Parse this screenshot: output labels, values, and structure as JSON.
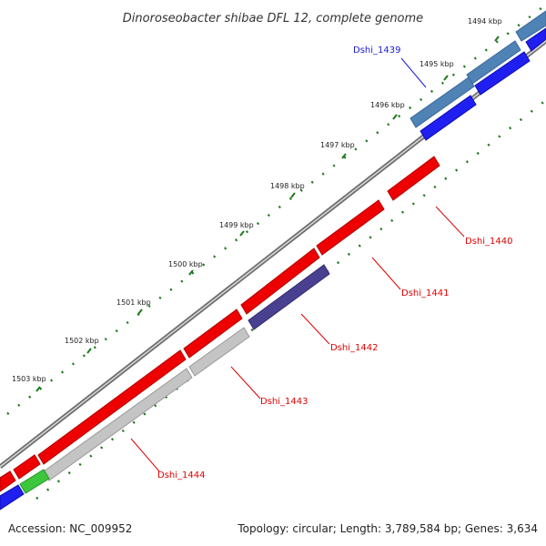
{
  "title": "Dinoroseobacter shibae DFL 12, complete genome",
  "footer": {
    "accession": "Accession: NC_009952",
    "topology": "Topology: circular; Length: 3,789,584 bp; Genes: 3,634"
  },
  "ticks": [
    "1494 kbp",
    "1495 kbp",
    "1496 kbp",
    "1497 kbp",
    "1498 kbp",
    "1499 kbp",
    "1500 kbp",
    "1501 kbp",
    "1502 kbp",
    "1503 kbp"
  ],
  "gene_labels": [
    {
      "text": "Dshi_1439",
      "color": "#1a1ad6"
    },
    {
      "text": "Dshi_1440",
      "color": "#e00000"
    },
    {
      "text": "Dshi_1441",
      "color": "#e00000"
    },
    {
      "text": "Dshi_1442",
      "color": "#e00000"
    },
    {
      "text": "Dshi_1443",
      "color": "#e00000"
    },
    {
      "text": "Dshi_1444",
      "color": "#e00000"
    }
  ],
  "colors": {
    "backbone": "#8c8c8c",
    "gene_red": "#ee0000",
    "gene_blue": "#1f1ff0",
    "gene_steelblue": "#4f82b5",
    "gene_purple": "#4a4090",
    "gene_gray": "#c4c4c4",
    "gene_green": "#3cc63c",
    "tick_green": "#1a7a1a"
  }
}
